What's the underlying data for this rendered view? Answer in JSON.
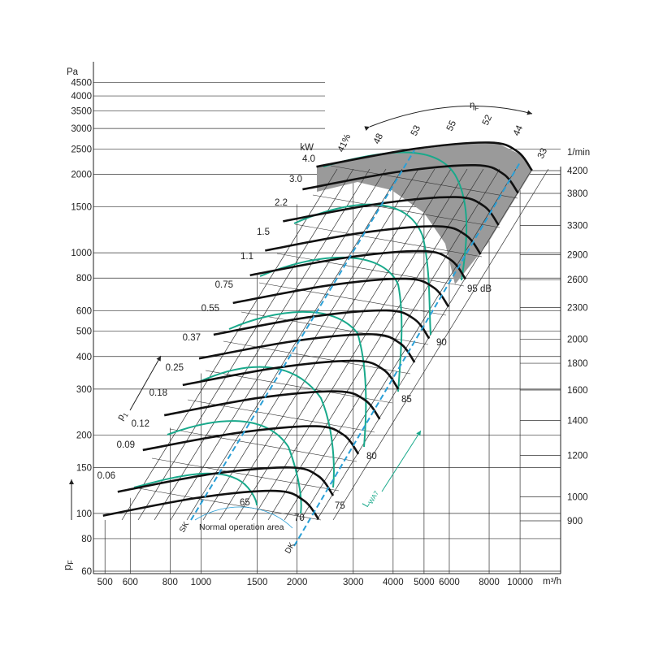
{
  "chart_data": {
    "type": "line",
    "x_label": "m³/h",
    "y_label": "Pa",
    "y_symbol": "p",
    "y_symbol_sub": "F",
    "y2_label": "1/min",
    "xscale": "log",
    "yscale": "log",
    "y2scale": "log",
    "xlim": [
      460,
      13400
    ],
    "xticks": [
      500,
      600,
      800,
      1000,
      1500,
      2000,
      3000,
      4000,
      5000,
      6000,
      8000,
      10000
    ],
    "ylim": [
      60,
      5000
    ],
    "yticks": [
      60,
      80,
      100,
      150,
      200,
      300,
      400,
      500,
      600,
      800,
      1000,
      1500,
      2000,
      2500,
      3000,
      3500,
      4000,
      4500
    ],
    "y2lim": [
      721,
      6520
    ],
    "y2ticks": [
      900,
      1000,
      1200,
      1400,
      1600,
      1800,
      2000,
      2300,
      2600,
      2900,
      3300,
      3800,
      4200
    ],
    "curve_color": "#111111",
    "noise_color": "#19a98b",
    "line_color": "#2a9fd6",
    "region_color": "#9a9a9a",
    "series": [
      {
        "x": [
          493,
          986,
          1714,
          2100,
          2336
        ],
        "values": [
          98,
          115,
          122,
          112,
          95
        ]
      },
      {
        "x": [
          548,
          1095,
          1905,
          2333,
          2595
        ],
        "values": [
          121,
          142,
          150,
          139,
          117
        ]
      },
      {
        "x": [
          657,
          1314,
          2286,
          2800,
          3114
        ],
        "values": [
          175,
          204,
          216,
          200,
          169
        ]
      },
      {
        "x": [
          767,
          1533,
          2667,
          3267,
          3633
        ],
        "values": [
          238,
          278,
          294,
          272,
          230
        ]
      },
      {
        "x": [
          876,
          1752,
          3048,
          3733,
          4152
        ],
        "values": [
          311,
          363,
          385,
          356,
          300
        ]
      },
      {
        "x": [
          986,
          1971,
          3429,
          4200,
          4671
        ],
        "values": [
          393,
          459,
          487,
          450,
          380
        ]
      },
      {
        "x": [
          1095,
          2190,
          3810,
          4667,
          5190
        ],
        "values": [
          485,
          567,
          601,
          556,
          469
        ]
      },
      {
        "x": [
          1259,
          2519,
          4381,
          5367,
          5969
        ],
        "values": [
          642,
          750,
          795,
          735,
          621
        ]
      },
      {
        "x": [
          1424,
          2848,
          4952,
          6067,
          6748
        ],
        "values": [
          820,
          958,
          1015,
          939,
          793
        ]
      },
      {
        "x": [
          1588,
          3176,
          5524,
          6767,
          7526
        ],
        "values": [
          1020,
          1192,
          1264,
          1168,
          987
        ]
      },
      {
        "x": [
          1807,
          3614,
          6286,
          7700,
          8564
        ],
        "values": [
          1321,
          1543,
          1636,
          1512,
          1278
        ]
      },
      {
        "x": [
          2081,
          4162,
          7238,
          8867,
          9862
        ],
        "values": [
          1752,
          2047,
          2169,
          2006,
          1695
        ]
      },
      {
        "x": [
          2300,
          4600,
          8000,
          9800,
          10900
        ],
        "values": [
          2140,
          2500,
          2650,
          2450,
          2070
        ]
      }
    ],
    "power_unit": "kW",
    "power_labels": [
      "0.06",
      "0.09",
      "0.12",
      "0.18",
      "0.25",
      "0.37",
      "0.55",
      "0.75",
      "1.1",
      "1.5",
      "2.2",
      "3.0",
      "4.0"
    ],
    "efficiency_symbol": "η",
    "efficiency_sub": "F",
    "efficiency_labels": [
      "41%",
      "48",
      "53",
      "55",
      "52",
      "44",
      "33"
    ],
    "noise_labels": [
      "65",
      "70",
      "75",
      "80",
      "85",
      "90",
      "95 dB"
    ],
    "noise_symbol": "L",
    "noise_sub": "WA7",
    "pressure_symbol": "p",
    "pressure_sub": "1",
    "normal_area": "Normal operation area",
    "sk_label": "SK",
    "dk_label": "DK"
  }
}
